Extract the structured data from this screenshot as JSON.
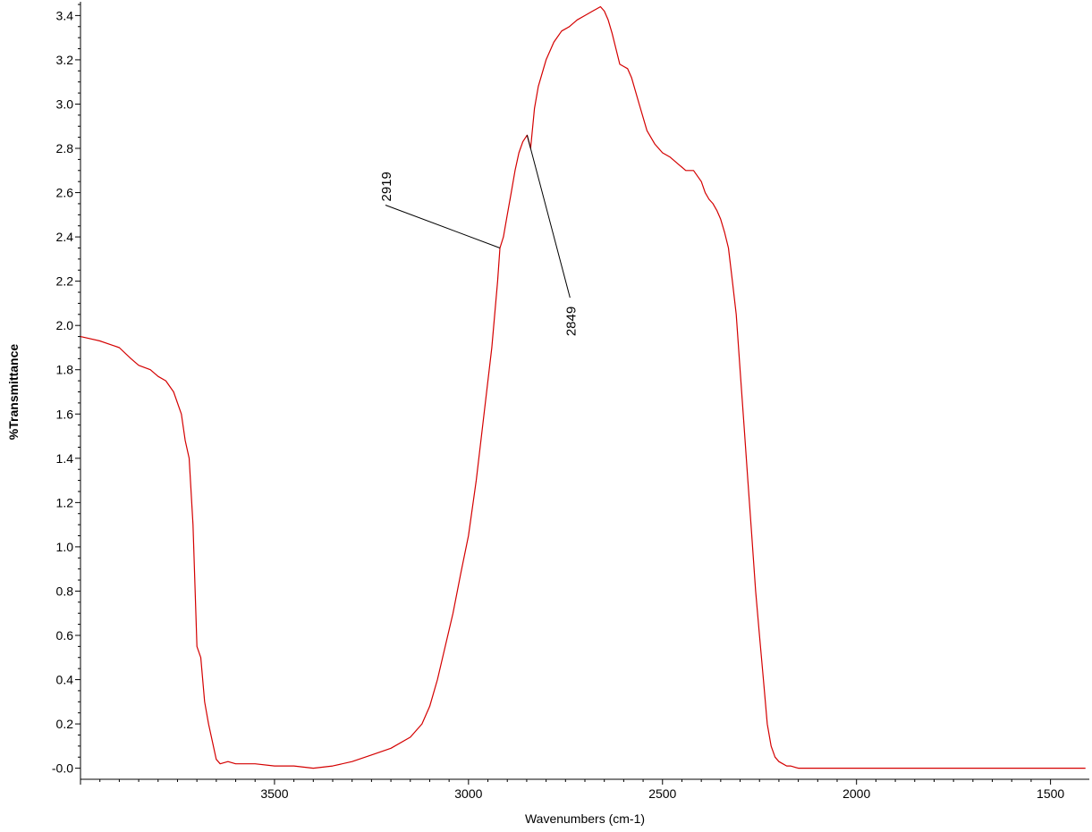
{
  "chart_data": {
    "type": "line",
    "xlabel": "Wavenumbers (cm-1)",
    "ylabel": "%Transmittance",
    "xlim": [
      4000,
      1400
    ],
    "x_reversed": true,
    "ylim": [
      -0.05,
      3.45
    ],
    "x_ticks": [
      3500,
      3000,
      2500,
      2000,
      1500
    ],
    "x_tick_labels": [
      "3500",
      "3000",
      "2500",
      "2000",
      "1500"
    ],
    "y_ticks": [
      0.0,
      0.2,
      0.4,
      0.6,
      0.8,
      1.0,
      1.2,
      1.4,
      1.6,
      1.8,
      2.0,
      2.2,
      2.4,
      2.6,
      2.8,
      3.0,
      3.2,
      3.4
    ],
    "y_tick_labels": [
      "-0.0",
      "0.2",
      "0.4",
      "0.6",
      "0.8",
      "1.0",
      "1.2",
      "1.4",
      "1.6",
      "1.8",
      "2.0",
      "2.2",
      "2.4",
      "2.6",
      "2.8",
      "3.0",
      "3.2",
      "3.4"
    ],
    "grid": false,
    "series": [
      {
        "color": "#d40000",
        "x": [
          4000,
          3950,
          3900,
          3870,
          3850,
          3820,
          3800,
          3780,
          3760,
          3740,
          3730,
          3720,
          3710,
          3700,
          3690,
          3680,
          3670,
          3660,
          3650,
          3640,
          3620,
          3600,
          3550,
          3500,
          3450,
          3400,
          3350,
          3300,
          3250,
          3200,
          3150,
          3120,
          3100,
          3080,
          3060,
          3040,
          3020,
          3000,
          2980,
          2960,
          2940,
          2925,
          2919,
          2910,
          2900,
          2890,
          2880,
          2870,
          2860,
          2849,
          2840,
          2830,
          2820,
          2800,
          2780,
          2760,
          2740,
          2720,
          2700,
          2680,
          2670,
          2660,
          2650,
          2640,
          2630,
          2620,
          2610,
          2600,
          2590,
          2580,
          2560,
          2540,
          2520,
          2500,
          2480,
          2460,
          2440,
          2420,
          2400,
          2390,
          2380,
          2370,
          2360,
          2350,
          2340,
          2330,
          2320,
          2310,
          2300,
          2290,
          2280,
          2270,
          2260,
          2250,
          2240,
          2230,
          2220,
          2210,
          2200,
          2190,
          2180,
          2170,
          2150,
          2100,
          2000,
          1900,
          1800,
          1700,
          1600,
          1500,
          1410
        ],
        "y": [
          1.95,
          1.93,
          1.9,
          1.85,
          1.82,
          1.8,
          1.77,
          1.75,
          1.7,
          1.6,
          1.48,
          1.4,
          1.1,
          0.55,
          0.5,
          0.3,
          0.2,
          0.12,
          0.04,
          0.02,
          0.03,
          0.02,
          0.02,
          0.01,
          0.01,
          0.0,
          0.01,
          0.03,
          0.06,
          0.09,
          0.14,
          0.2,
          0.28,
          0.4,
          0.55,
          0.7,
          0.88,
          1.05,
          1.3,
          1.6,
          1.9,
          2.2,
          2.35,
          2.4,
          2.5,
          2.6,
          2.7,
          2.78,
          2.83,
          2.86,
          2.8,
          2.98,
          3.08,
          3.2,
          3.28,
          3.33,
          3.35,
          3.38,
          3.4,
          3.42,
          3.43,
          3.44,
          3.42,
          3.38,
          3.32,
          3.25,
          3.18,
          3.17,
          3.16,
          3.12,
          3.0,
          2.88,
          2.82,
          2.78,
          2.76,
          2.73,
          2.7,
          2.7,
          2.65,
          2.6,
          2.57,
          2.55,
          2.52,
          2.48,
          2.42,
          2.35,
          2.2,
          2.05,
          1.8,
          1.55,
          1.3,
          1.05,
          0.8,
          0.6,
          0.4,
          0.2,
          0.1,
          0.05,
          0.03,
          0.02,
          0.01,
          0.01,
          0.0,
          0.0,
          0.0,
          0.0,
          0.0,
          0.0,
          0.0,
          0.0,
          0.0
        ]
      }
    ],
    "annotations": [
      {
        "text": "2919",
        "x": 2919,
        "y": 2.35
      },
      {
        "text": "2849",
        "x": 2849,
        "y": 2.86
      }
    ]
  }
}
